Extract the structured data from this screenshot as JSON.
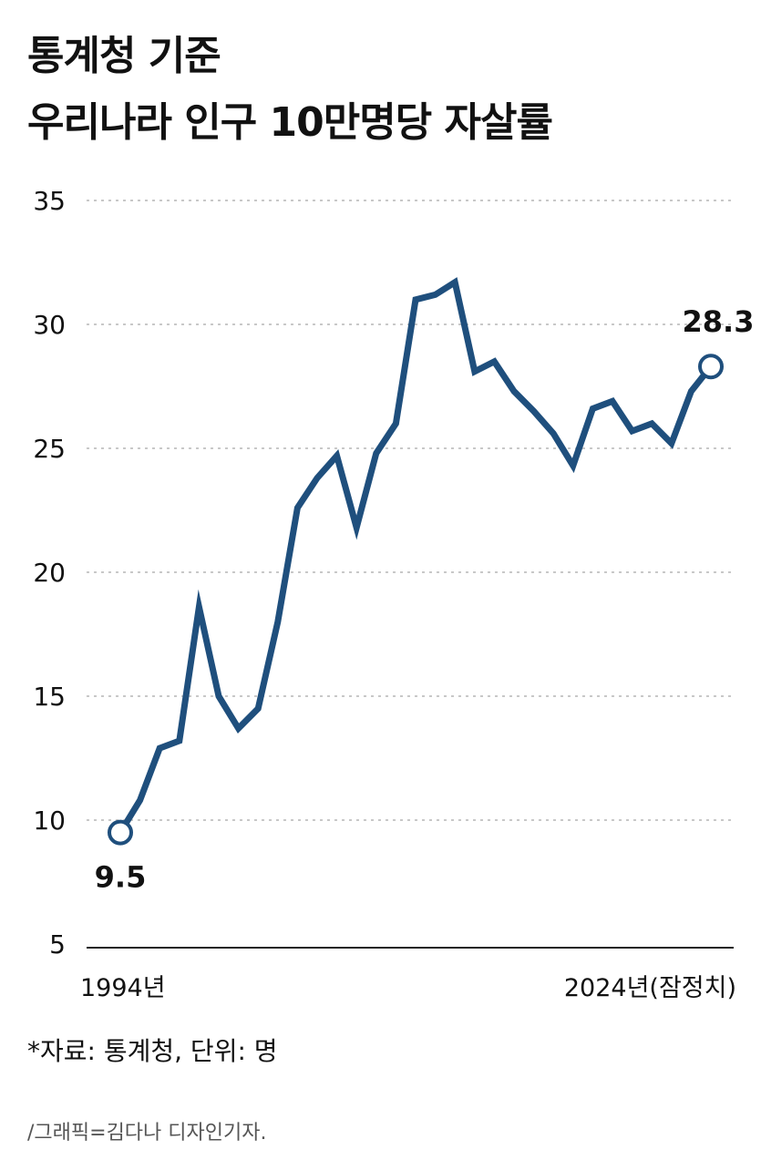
{
  "header": {
    "title_line_1": "통계청 기준",
    "title_line_2": "우리나라 인구 10만명당 자살률"
  },
  "chart_data": {
    "type": "line",
    "title": "통계청 기준 우리나라 인구 10만명당 자살률",
    "x": [
      1994,
      1995,
      1996,
      1997,
      1998,
      1999,
      2000,
      2001,
      2002,
      2003,
      2004,
      2005,
      2006,
      2007,
      2008,
      2009,
      2010,
      2011,
      2012,
      2013,
      2014,
      2015,
      2016,
      2017,
      2018,
      2019,
      2020,
      2021,
      2022,
      2023,
      2024
    ],
    "x_tick_labels": {
      "first": "1994년",
      "last": "2024년(잠정치)"
    },
    "series": [
      {
        "name": "인구 10만명당 자살률",
        "color": "#1f4f7d",
        "values": [
          9.5,
          10.8,
          12.9,
          13.2,
          18.6,
          15.0,
          13.7,
          14.5,
          18.0,
          22.6,
          23.8,
          24.7,
          21.8,
          24.8,
          26.0,
          31.0,
          31.2,
          31.7,
          28.1,
          28.5,
          27.3,
          26.5,
          25.6,
          24.3,
          26.6,
          26.9,
          25.7,
          26.0,
          25.2,
          27.3,
          28.3
        ]
      }
    ],
    "ylim": [
      5,
      35
    ],
    "yticks": [
      5,
      10,
      15,
      20,
      25,
      30,
      35
    ],
    "grid": "horizontal dotted",
    "annotations": [
      {
        "x": 1994,
        "y": 9.5,
        "label": "9.5",
        "position": "below"
      },
      {
        "x": 2024,
        "y": 28.3,
        "label": "28.3",
        "position": "above"
      }
    ],
    "xlabel": "",
    "ylabel": ""
  },
  "footer": {
    "source": "*자료: 통계청, 단위: 명",
    "credit": "/그래픽=김다나 디자인기자."
  },
  "colors": {
    "line": "#1f4f7d",
    "grid": "#c8c8c8",
    "axis": "#222222",
    "text": "#111111",
    "marker_fill": "#ffffff"
  }
}
